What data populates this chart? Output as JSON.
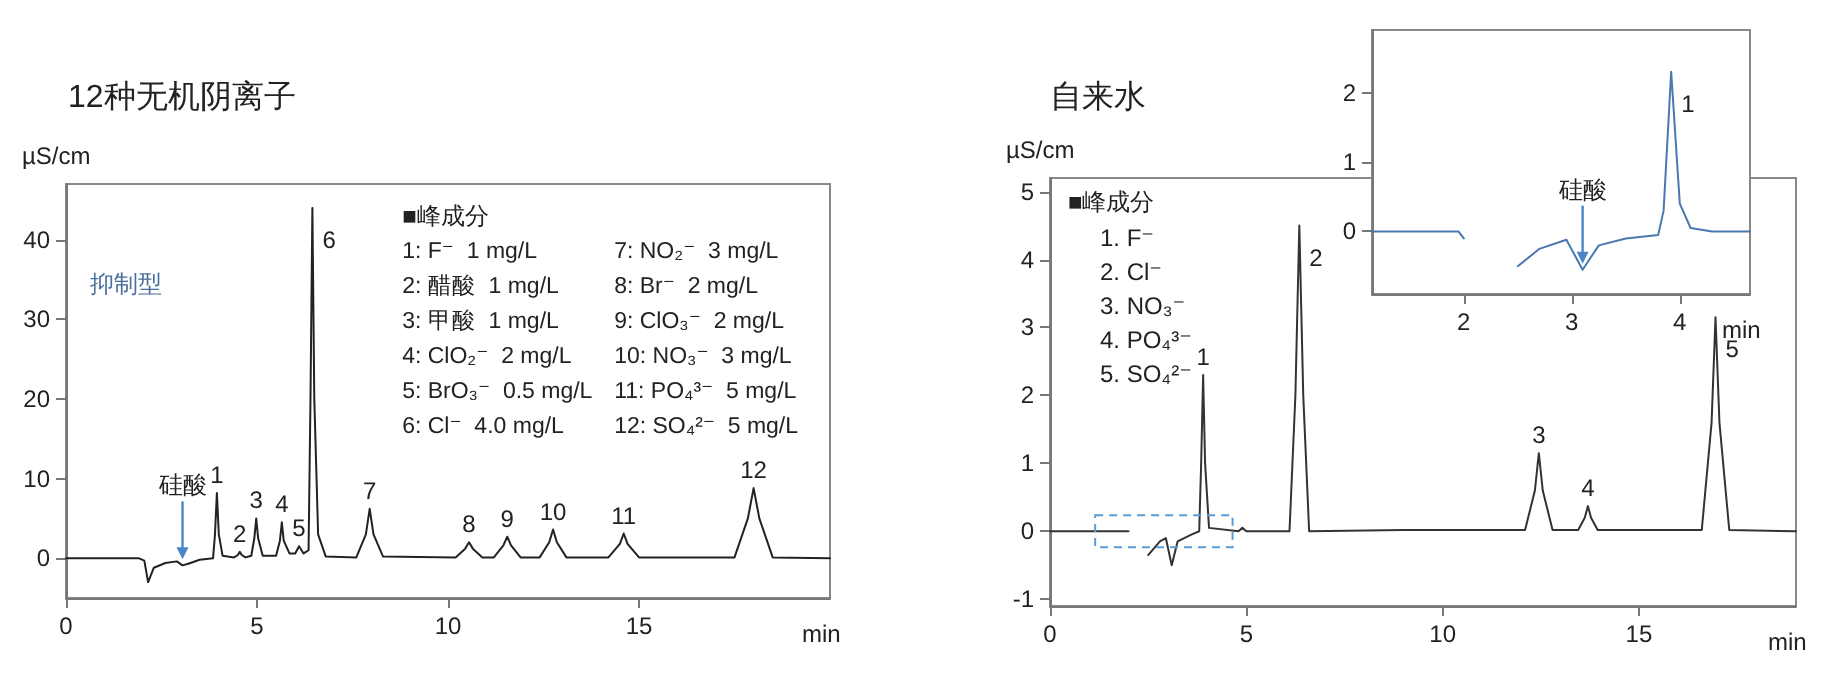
{
  "chart_data": [
    {
      "type": "line",
      "title": "12种无机阴离子",
      "subtitle": "抑制型",
      "ylabel": "µS/cm",
      "xlabel": "min",
      "legend_title": "■峰成分",
      "marker": "none",
      "line_style": "solid",
      "xlim": [
        0,
        20
      ],
      "ylim": [
        -5,
        47
      ],
      "xticks": [
        0,
        5,
        10,
        15
      ],
      "yticks": [
        0,
        10,
        20,
        30,
        40
      ],
      "series": [
        {
          "color": "#222222",
          "x": [
            0,
            1.9,
            2.05,
            2.15,
            2.3,
            2.6,
            2.9,
            3.05,
            3.2,
            3.5,
            3.85,
            3.9,
            3.95,
            4.0,
            4.1,
            4.4,
            4.5,
            4.55,
            4.6,
            4.7,
            4.85,
            4.93,
            4.98,
            5.03,
            5.15,
            5.5,
            5.6,
            5.65,
            5.7,
            5.85,
            6.0,
            6.1,
            6.22,
            6.35,
            6.4,
            6.45,
            6.5,
            6.6,
            6.8,
            7.6,
            7.85,
            7.95,
            8.05,
            8.3,
            10.2,
            10.45,
            10.55,
            10.65,
            10.9,
            11.2,
            11.45,
            11.55,
            11.65,
            11.9,
            12.4,
            12.65,
            12.75,
            12.85,
            13.1,
            14.2,
            14.5,
            14.6,
            14.7,
            15.0,
            17.5,
            17.85,
            18.0,
            18.15,
            18.5,
            20
          ],
          "values": [
            0,
            0,
            -0.3,
            -3,
            -1.2,
            -0.6,
            -0.4,
            -0.9,
            -0.7,
            -0.2,
            0,
            3,
            8.2,
            3,
            0.3,
            0.1,
            0.4,
            0.8,
            0.4,
            0.1,
            0.3,
            2.5,
            5,
            2.5,
            0.3,
            0.3,
            2.2,
            4.5,
            2.2,
            0.6,
            0.6,
            1.5,
            0.6,
            1,
            20,
            44,
            20,
            3,
            0.2,
            0.1,
            3,
            6.2,
            3,
            0.2,
            0.1,
            1.2,
            2,
            1.2,
            0.1,
            0.1,
            1.6,
            2.7,
            1.6,
            0.1,
            0.1,
            2,
            3.6,
            2,
            0.1,
            0.1,
            1.8,
            3.1,
            1.8,
            0.1,
            0.1,
            5,
            8.8,
            5,
            0.1,
            0
          ]
        }
      ],
      "annotations": [
        "1: F⁻  1 mg/L",
        "2: 醋酸  1 mg/L",
        "3: 甲酸  1 mg/L",
        "4: ClO₂⁻  2 mg/L",
        "5: BrO₃⁻  0.5 mg/L",
        "6: Cl⁻  4.0 mg/L",
        "7: NO₂⁻  3 mg/L",
        "8: Br⁻  2 mg/L",
        "9: ClO₃⁻  2 mg/L",
        "10: NO₃⁻  3 mg/L",
        "11: PO₄³⁻  5 mg/L",
        "12: SO₄²⁻  5 mg/L",
        {
          "text": "1",
          "x": 3.95,
          "y": 8.2
        },
        {
          "text": "2",
          "x": 4.55,
          "y": 0.8
        },
        {
          "text": "3",
          "x": 4.98,
          "y": 5
        },
        {
          "text": "4",
          "x": 5.65,
          "y": 4.5
        },
        {
          "text": "5",
          "x": 6.1,
          "y": 1.5
        },
        {
          "text": "6",
          "x": 6.45,
          "y": 44
        },
        {
          "text": "7",
          "x": 7.95,
          "y": 6.2
        },
        {
          "text": "8",
          "x": 10.55,
          "y": 2
        },
        {
          "text": "9",
          "x": 11.55,
          "y": 2.7
        },
        {
          "text": "10",
          "x": 12.75,
          "y": 3.6
        },
        {
          "text": "11",
          "x": 14.6,
          "y": 3.1
        },
        {
          "text": "12",
          "x": 18.0,
          "y": 8.8
        },
        {
          "text": "硅酸",
          "x": 3.05,
          "y": -0.9
        }
      ]
    },
    {
      "type": "line",
      "title": "自来水",
      "ylabel": "µS/cm",
      "xlabel": "min",
      "legend_title": "■峰成分",
      "marker": "none",
      "line_style": "solid",
      "xlim": [
        0,
        19
      ],
      "ylim": [
        -1.1,
        5.2
      ],
      "xticks": [
        0,
        5,
        10,
        15
      ],
      "yticks": [
        -1,
        0,
        1,
        2,
        3,
        4,
        5
      ],
      "series": [
        {
          "color": "#333333",
          "x": [
            0,
            2.0,
            2.03,
            2.15,
            2.3,
            2.5,
            2.8,
            2.95,
            3.1,
            3.25,
            3.6,
            3.8,
            3.85,
            3.9,
            3.95,
            4.05,
            4.8,
            4.9,
            5.0,
            6.1,
            6.25,
            6.35,
            6.45,
            6.6,
            9.0,
            12.1,
            12.35,
            12.45,
            12.55,
            12.8,
            13.45,
            13.62,
            13.7,
            13.78,
            13.95,
            16.6,
            16.85,
            16.95,
            17.05,
            17.3,
            19
          ],
          "values": [
            0,
            0,
            null,
            null,
            null,
            -0.35,
            -0.15,
            -0.1,
            -0.5,
            -0.15,
            -0.05,
            0,
            1,
            2.3,
            1,
            0.05,
            0,
            0.05,
            0,
            0,
            2,
            4.5,
            2,
            0,
            0.02,
            0.02,
            0.6,
            1.15,
            0.6,
            0.02,
            0.02,
            0.2,
            0.37,
            0.2,
            0.02,
            0.02,
            1.6,
            3.15,
            1.6,
            0.02,
            0
          ]
        }
      ],
      "annotations": [
        "1. F⁻",
        "2. Cl⁻",
        "3. NO₃⁻",
        "4. PO₄³⁻",
        "5. SO₄²⁻",
        {
          "text": "1",
          "x": 3.9,
          "y": 2.3
        },
        {
          "text": "2",
          "x": 6.35,
          "y": 4.5
        },
        {
          "text": "3",
          "x": 12.45,
          "y": 1.15
        },
        {
          "text": "4",
          "x": 13.7,
          "y": 0.37
        },
        {
          "text": "5",
          "x": 16.95,
          "y": 3.15
        }
      ]
    },
    {
      "type": "line",
      "xlabel": "min",
      "marker": "none",
      "line_style": "solid",
      "xlim": [
        1.15,
        4.65
      ],
      "ylim": [
        -0.9,
        2.9
      ],
      "xticks": [
        2,
        3,
        4
      ],
      "yticks": [
        0,
        1,
        2
      ],
      "series": [
        {
          "color": "#4a78b0",
          "x": [
            1.15,
            1.95,
            2.0,
            2.03,
            2.15,
            2.3,
            2.5,
            2.7,
            2.95,
            3.1,
            3.25,
            3.5,
            3.8,
            3.85,
            3.92,
            4.0,
            4.1,
            4.3,
            4.65
          ],
          "values": [
            0,
            0,
            -0.1,
            null,
            null,
            null,
            -0.5,
            -0.25,
            -0.12,
            -0.55,
            -0.2,
            -0.1,
            -0.05,
            0.3,
            2.3,
            0.4,
            0.05,
            0,
            0
          ]
        }
      ],
      "annotations": [
        {
          "text": "1",
          "x": 3.92,
          "y": 2.3
        },
        {
          "text": "硅酸",
          "x": 3.1,
          "y": -0.55
        }
      ]
    }
  ]
}
